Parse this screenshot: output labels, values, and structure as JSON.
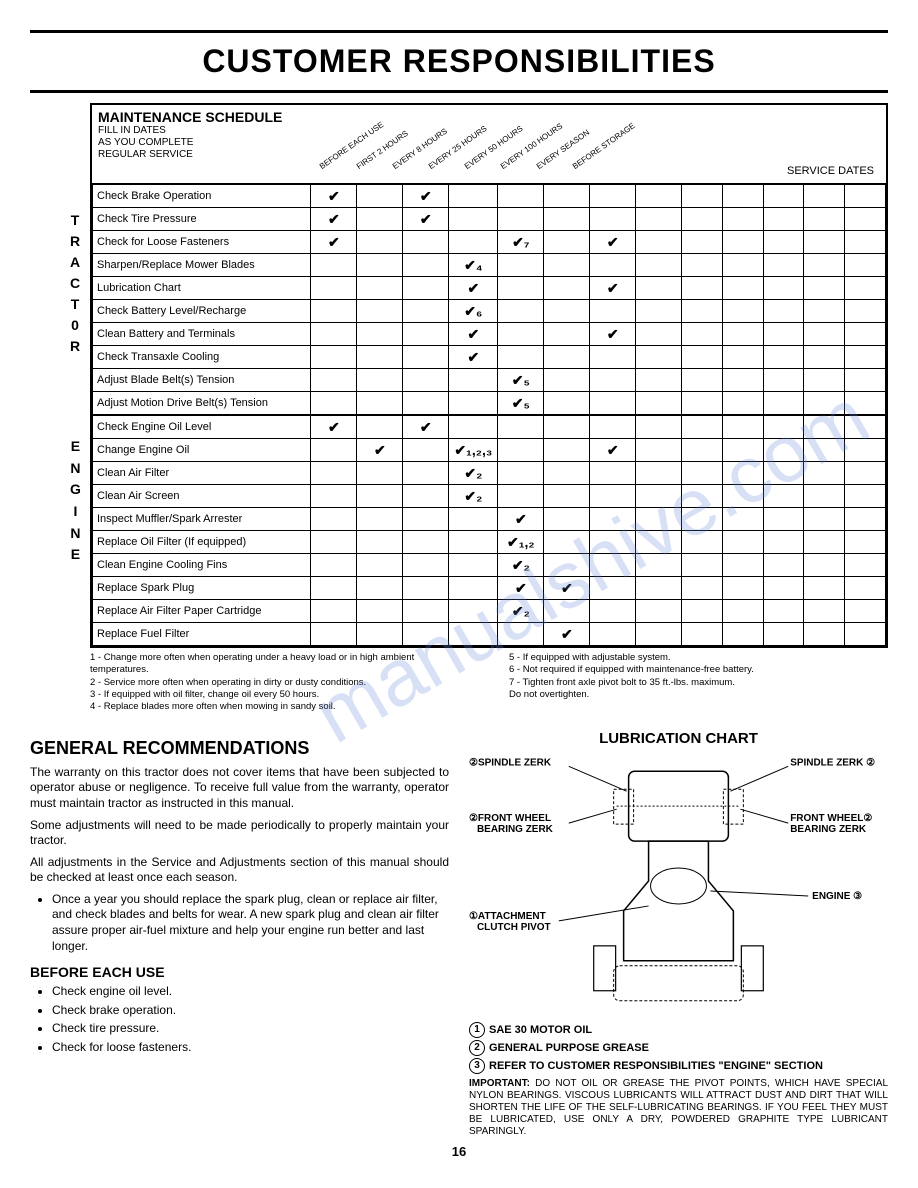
{
  "page_title": "CUSTOMER RESPONSIBILITIES",
  "page_number": "16",
  "watermark_text": "manualshive.com",
  "schedule": {
    "title": "MAINTENANCE SCHEDULE",
    "subtitle": "FILL IN DATES\nAS YOU COMPLETE\nREGULAR SERVICE",
    "service_dates_label": "SERVICE DATES",
    "interval_headers": [
      "BEFORE EACH USE",
      "FIRST 2 HOURS",
      "EVERY 8 HOURS",
      "EVERY 25 HOURS",
      "EVERY 50 HOURS",
      "EVERY 100 HOURS",
      "EVERY SEASON",
      "BEFORE STORAGE"
    ],
    "group_labels": [
      "T",
      "R",
      "A",
      "C",
      "T",
      "0",
      "R",
      "E",
      "N",
      "G",
      "I",
      "N",
      "E"
    ],
    "tractor_tasks": [
      {
        "name": "Check Brake Operation",
        "marks": [
          "✔",
          "",
          "✔",
          "",
          "",
          "",
          "",
          ""
        ]
      },
      {
        "name": "Check Tire Pressure",
        "marks": [
          "✔",
          "",
          "✔",
          "",
          "",
          "",
          "",
          ""
        ]
      },
      {
        "name": "Check for Loose Fasteners",
        "marks": [
          "✔",
          "",
          "",
          "",
          "✔₇",
          "",
          "✔",
          ""
        ]
      },
      {
        "name": "Sharpen/Replace Mower Blades",
        "marks": [
          "",
          "",
          "",
          "✔₄",
          "",
          "",
          "",
          ""
        ]
      },
      {
        "name": "Lubrication Chart",
        "marks": [
          "",
          "",
          "",
          "✔",
          "",
          "",
          "✔",
          ""
        ]
      },
      {
        "name": "Check Battery Level/Recharge",
        "marks": [
          "",
          "",
          "",
          "✔₆",
          "",
          "",
          "",
          ""
        ]
      },
      {
        "name": "Clean Battery and Terminals",
        "marks": [
          "",
          "",
          "",
          "✔",
          "",
          "",
          "✔",
          ""
        ]
      },
      {
        "name": "Check Transaxle Cooling",
        "marks": [
          "",
          "",
          "",
          "✔",
          "",
          "",
          "",
          ""
        ]
      },
      {
        "name": "Adjust Blade Belt(s) Tension",
        "marks": [
          "",
          "",
          "",
          "",
          "✔₅",
          "",
          "",
          ""
        ]
      },
      {
        "name": "Adjust Motion Drive Belt(s) Tension",
        "marks": [
          "",
          "",
          "",
          "",
          "✔₅",
          "",
          "",
          ""
        ]
      }
    ],
    "engine_tasks": [
      {
        "name": "Check Engine Oil Level",
        "marks": [
          "✔",
          "",
          "✔",
          "",
          "",
          "",
          "",
          ""
        ]
      },
      {
        "name": "Change Engine Oil",
        "marks": [
          "",
          "✔",
          "",
          "✔₁,₂,₃",
          "",
          "",
          "✔",
          ""
        ]
      },
      {
        "name": "Clean Air Filter",
        "marks": [
          "",
          "",
          "",
          "✔₂",
          "",
          "",
          "",
          ""
        ]
      },
      {
        "name": "Clean Air Screen",
        "marks": [
          "",
          "",
          "",
          "✔₂",
          "",
          "",
          "",
          ""
        ]
      },
      {
        "name": "Inspect Muffler/Spark Arrester",
        "marks": [
          "",
          "",
          "",
          "",
          "✔",
          "",
          "",
          ""
        ]
      },
      {
        "name": "Replace Oil Filter (If equipped)",
        "marks": [
          "",
          "",
          "",
          "",
          "✔₁,₂",
          "",
          "",
          ""
        ]
      },
      {
        "name": "Clean Engine Cooling Fins",
        "marks": [
          "",
          "",
          "",
          "",
          "✔₂",
          "",
          "",
          ""
        ]
      },
      {
        "name": "Replace Spark Plug",
        "marks": [
          "",
          "",
          "",
          "",
          "✔",
          "✔",
          "",
          ""
        ]
      },
      {
        "name": "Replace Air Filter Paper Cartridge",
        "marks": [
          "",
          "",
          "",
          "",
          "✔₂",
          "",
          "",
          ""
        ]
      },
      {
        "name": "Replace Fuel Filter",
        "marks": [
          "",
          "",
          "",
          "",
          "",
          "✔",
          "",
          ""
        ]
      }
    ]
  },
  "footnotes_left": [
    "1 - Change more often when operating under a heavy load or in high ambient temperatures.",
    "2 - Service more often when operating in dirty or dusty conditions.",
    "3 - If equipped with oil filter, change oil every 50 hours.",
    "4 - Replace blades more often when mowing in sandy soil."
  ],
  "footnotes_right": [
    "5 - If equipped with adjustable system.",
    "6 - Not required if equipped with maintenance-free battery.",
    "7 - Tighten front axle pivot bolt to 35 ft.-lbs. maximum.",
    "     Do not overtighten."
  ],
  "general": {
    "heading": "GENERAL RECOMMENDATIONS",
    "p1": "The warranty on this tractor does not cover items that have been subjected to operator abuse or negligence. To receive full value from the warranty, operator must maintain tractor as instructed in this manual.",
    "p2": "Some adjustments will need to be made periodically to properly maintain your tractor.",
    "p3": "All adjustments in the Service and Adjustments section of this manual should be checked at least once each season.",
    "bullet": "Once a year you should replace the spark plug, clean or replace air filter, and check blades and belts for wear. A new spark plug and clean air filter assure proper air-fuel mixture and help your engine run better and last longer."
  },
  "before_each_use": {
    "heading": "BEFORE EACH USE",
    "items": [
      "Check engine oil level.",
      "Check brake operation.",
      "Check tire pressure.",
      "Check for loose fasteners."
    ]
  },
  "lubrication": {
    "title": "LUBRICATION CHART",
    "labels": {
      "spindle_zerk": "SPINDLE ZERK",
      "front_wheel": "FRONT WHEEL BEARING ZERK",
      "attachment": "ATTACHMENT CLUTCH PIVOT",
      "engine": "ENGINE"
    },
    "legend": [
      {
        "num": "1",
        "text": "SAE 30 MOTOR OIL"
      },
      {
        "num": "2",
        "text": "GENERAL PURPOSE GREASE"
      },
      {
        "num": "3",
        "text": "REFER TO CUSTOMER RESPONSIBILITIES \"ENGINE\" SECTION"
      }
    ],
    "important": "IMPORTANT: DO NOT OIL OR GREASE THE PIVOT POINTS, WHICH HAVE SPECIAL NYLON BEARINGS. VISCOUS LUBRICANTS WILL ATTRACT DUST AND DIRT THAT WILL SHORTEN THE LIFE OF THE SELF-LUBRICATING BEARINGS. IF YOU FEEL THEY MUST BE LUBRICATED, USE ONLY A DRY, POWDERED GRAPHITE TYPE LUBRICANT SPARINGLY."
  }
}
